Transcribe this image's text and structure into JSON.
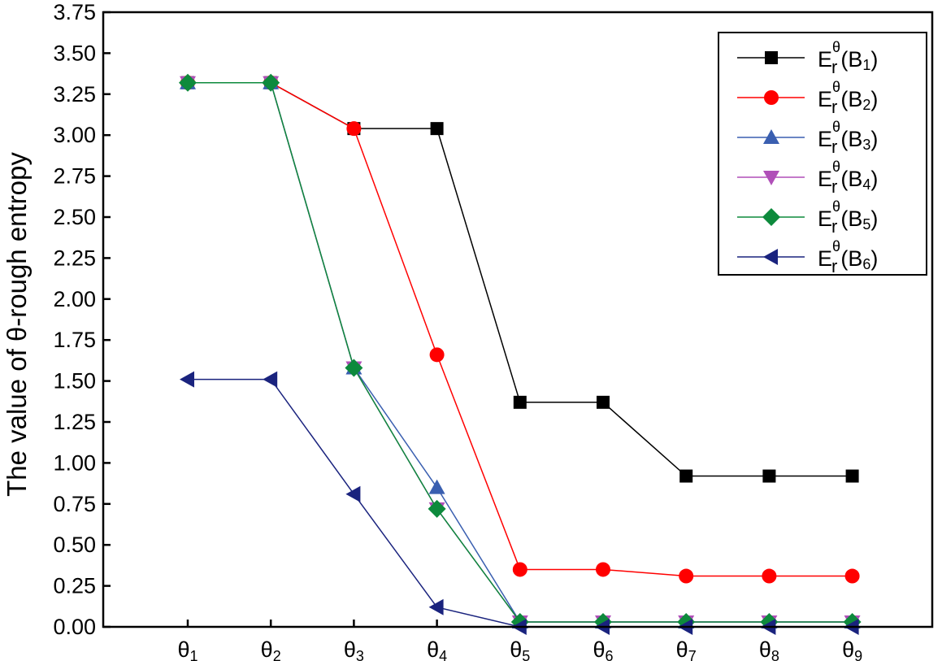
{
  "chart_data": {
    "type": "line",
    "title": "",
    "xlabel": "",
    "ylabel": "The value of θ-rough entropy",
    "categories": [
      {
        "base": "θ",
        "sub": "1"
      },
      {
        "base": "θ",
        "sub": "2"
      },
      {
        "base": "θ",
        "sub": "3"
      },
      {
        "base": "θ",
        "sub": "4"
      },
      {
        "base": "θ",
        "sub": "5"
      },
      {
        "base": "θ",
        "sub": "6"
      },
      {
        "base": "θ",
        "sub": "7"
      },
      {
        "base": "θ",
        "sub": "8"
      },
      {
        "base": "θ",
        "sub": "9"
      }
    ],
    "ylim": [
      0,
      3.75
    ],
    "yticks": [
      "0.00",
      "0.25",
      "0.50",
      "0.75",
      "1.00",
      "1.25",
      "1.50",
      "1.75",
      "2.00",
      "2.25",
      "2.50",
      "2.75",
      "3.00",
      "3.25",
      "3.50",
      "3.75"
    ],
    "grid": false,
    "legend_position": "top-right",
    "legend_label_parts": {
      "base": "E",
      "sup": "θ",
      "sub": "r",
      "open": "(",
      "close": ")",
      "set": "B"
    },
    "series": [
      {
        "name_index": "1",
        "color": "#000000",
        "marker": "square",
        "values": [
          3.32,
          3.32,
          3.04,
          3.04,
          1.37,
          1.37,
          0.92,
          0.92,
          0.92
        ]
      },
      {
        "name_index": "2",
        "color": "#ff0000",
        "marker": "circle",
        "values": [
          3.32,
          3.32,
          3.04,
          1.66,
          0.35,
          0.35,
          0.31,
          0.31,
          0.31
        ]
      },
      {
        "name_index": "3",
        "color": "#3a5fb0",
        "marker": "triangle-up",
        "values": [
          3.32,
          3.32,
          1.58,
          0.85,
          0.03,
          0.03,
          0.03,
          0.03,
          0.03
        ]
      },
      {
        "name_index": "4",
        "color": "#b04fb8",
        "marker": "triangle-down",
        "values": [
          3.32,
          3.32,
          1.58,
          0.72,
          0.03,
          0.03,
          0.03,
          0.03,
          0.03
        ]
      },
      {
        "name_index": "5",
        "color": "#0d8a3c",
        "marker": "diamond",
        "values": [
          3.32,
          3.32,
          1.58,
          0.72,
          0.03,
          0.03,
          0.03,
          0.03,
          0.03
        ]
      },
      {
        "name_index": "6",
        "color": "#1a237e",
        "marker": "triangle-left",
        "values": [
          1.51,
          1.51,
          0.81,
          0.12,
          0.0,
          0.0,
          0.0,
          0.0,
          0.0
        ]
      }
    ]
  }
}
